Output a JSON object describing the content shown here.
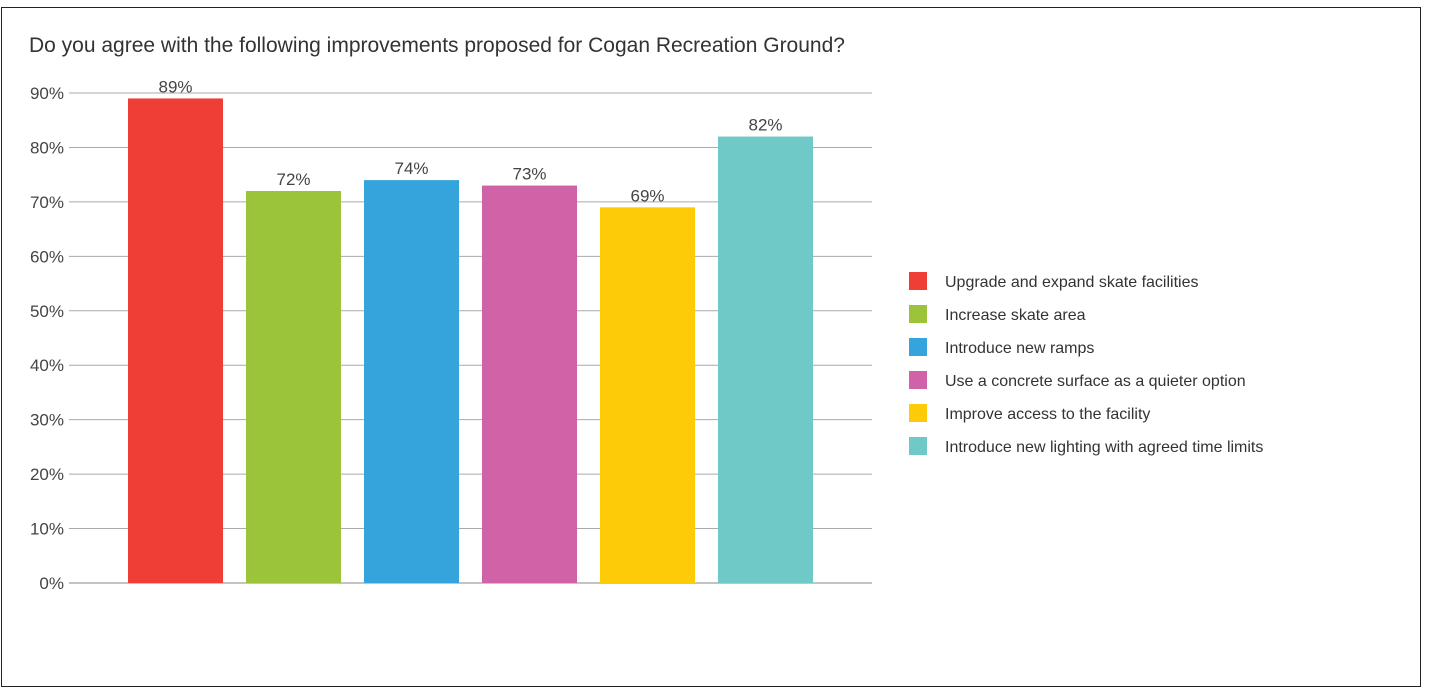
{
  "chart_data": {
    "type": "bar",
    "title": "Do you agree with the following improvements proposed for Cogan Recreation Ground?",
    "xlabel": "",
    "ylabel": "",
    "ylim": [
      0,
      90
    ],
    "yticks": [
      0,
      10,
      20,
      30,
      40,
      50,
      60,
      70,
      80,
      90
    ],
    "ytick_labels": [
      "0%",
      "10%",
      "20%",
      "30%",
      "40%",
      "50%",
      "60%",
      "70%",
      "80%",
      "90%"
    ],
    "grid": true,
    "legend_position": "right",
    "categories": [
      "Upgrade and expand skate facilities",
      "Increase skate area",
      "Introduce new ramps",
      "Use a concrete surface as a quieter option",
      "Improve access to the facility",
      "Introduce new lighting with agreed time limits"
    ],
    "values": [
      89,
      72,
      74,
      73,
      69,
      82
    ],
    "value_labels": [
      "89%",
      "72%",
      "74%",
      "73%",
      "69%",
      "82%"
    ],
    "colors": [
      "#ee3e35",
      "#9bc43a",
      "#35a4dd",
      "#d063a8",
      "#fecb08",
      "#6fc9c7"
    ]
  }
}
